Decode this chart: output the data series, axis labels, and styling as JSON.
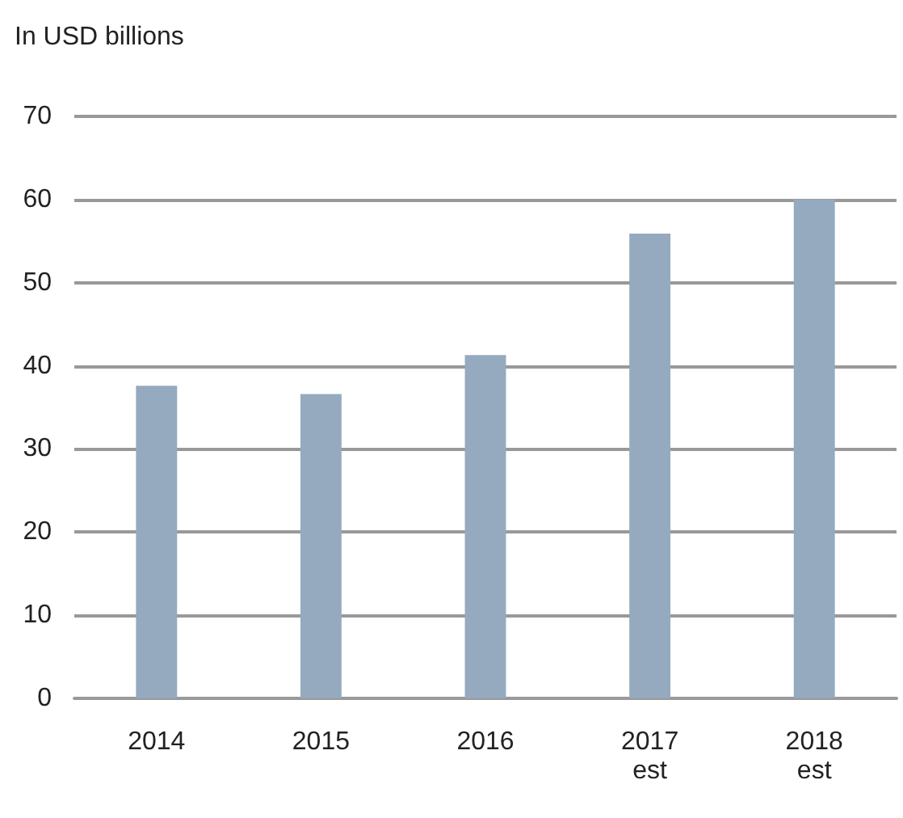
{
  "chart_data": {
    "type": "bar",
    "title": "In USD billions",
    "categories": [
      "2014",
      "2015",
      "2016",
      "2017\nest",
      "2018\nest"
    ],
    "values": [
      37.6,
      36.6,
      41.3,
      55.9,
      60
    ],
    "color": "#95aabf",
    "ylim": [
      0,
      70
    ],
    "yticks": [
      0,
      10,
      20,
      30,
      40,
      50,
      60,
      70
    ],
    "grid": "y"
  }
}
